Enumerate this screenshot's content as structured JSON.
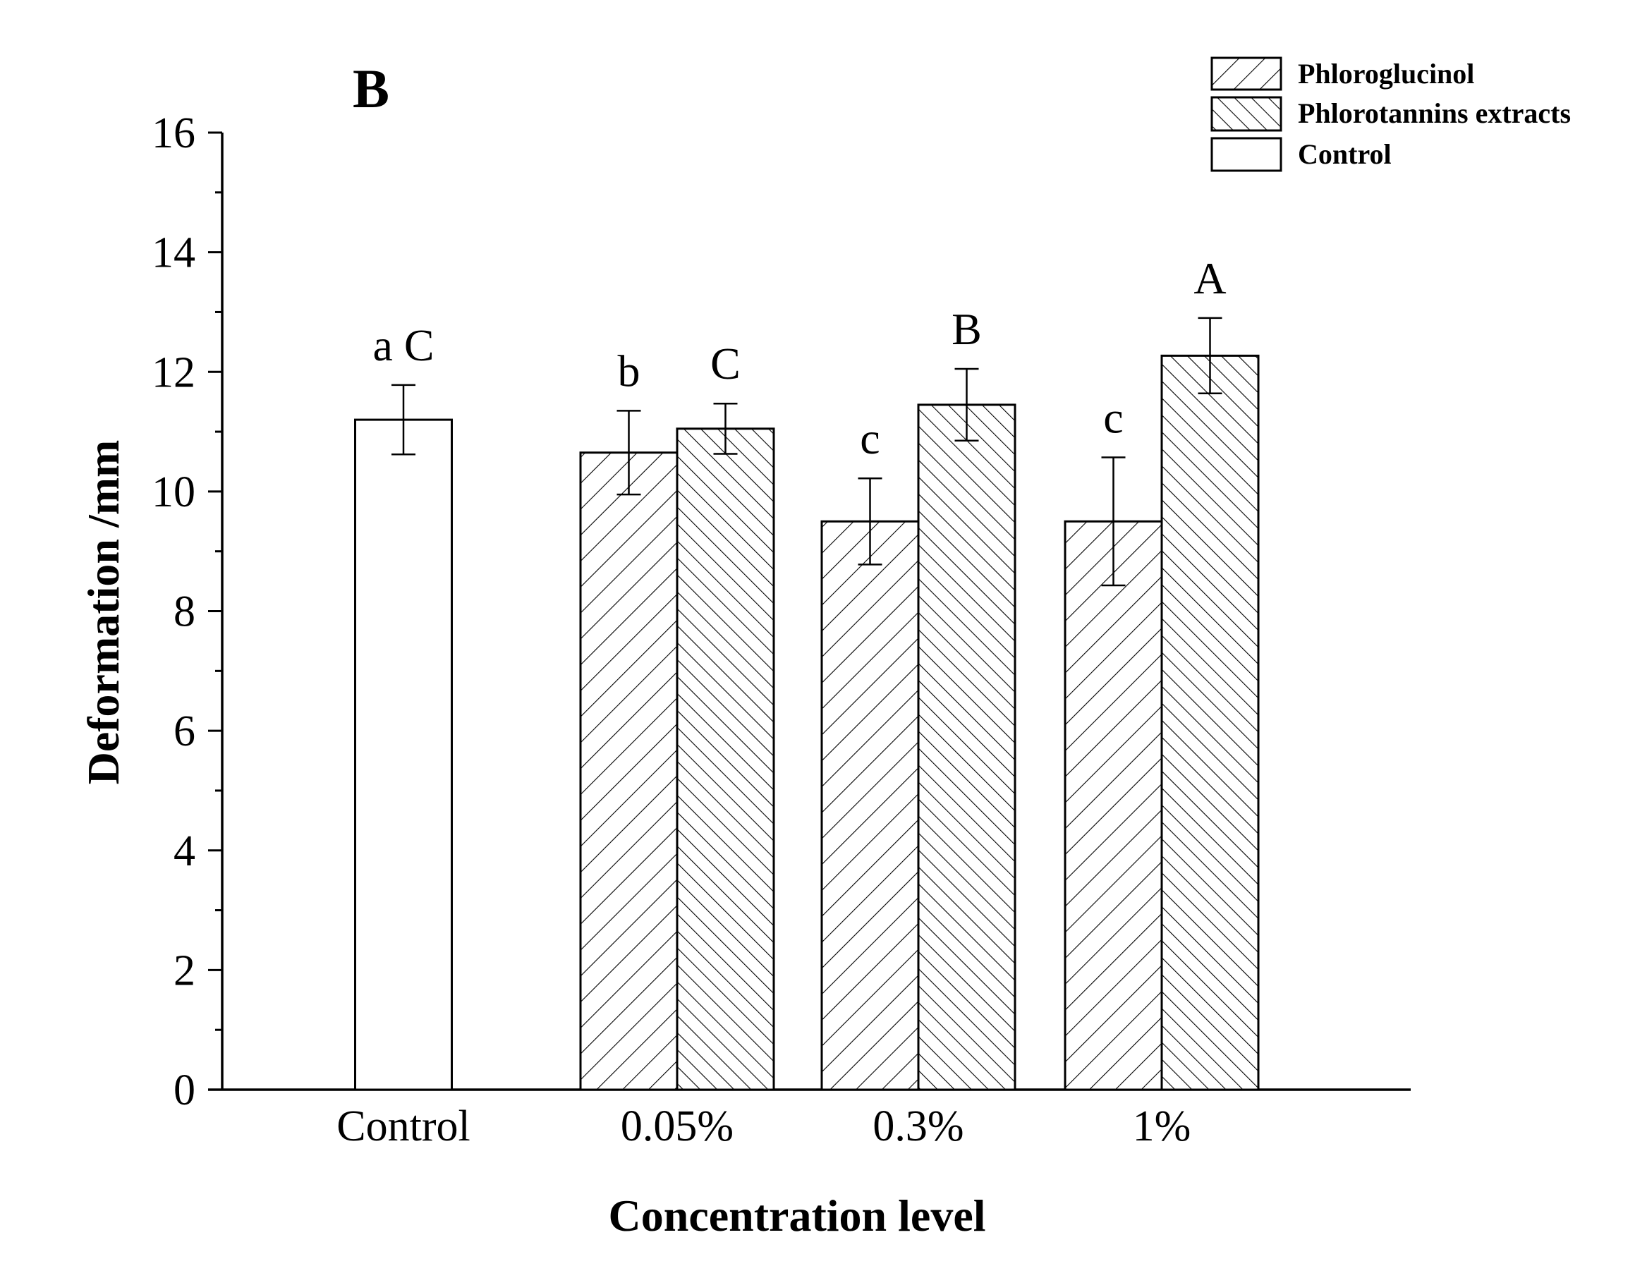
{
  "chart_data": {
    "type": "bar",
    "panel_label": "B",
    "xlabel": "Concentration level",
    "ylabel": "Deformation /mm",
    "ylim": [
      0,
      16
    ],
    "yticks": [
      0,
      2,
      4,
      6,
      8,
      10,
      12,
      14,
      16
    ],
    "categories": [
      "Control",
      "0.05%",
      "0.3%",
      "1%"
    ],
    "series": [
      {
        "name": "Control",
        "pattern": "none",
        "values": [
          11.2,
          null,
          null,
          null
        ],
        "errors": [
          0.58,
          null,
          null,
          null
        ],
        "labels": [
          "a C",
          null,
          null,
          null
        ]
      },
      {
        "name": "Phloroglucinol",
        "pattern": "forward-hatch",
        "values": [
          null,
          10.65,
          9.5,
          9.5
        ],
        "errors": [
          null,
          0.7,
          0.72,
          1.07
        ],
        "labels": [
          null,
          "b",
          "c",
          "c"
        ]
      },
      {
        "name": "Phlorotannins extracts",
        "pattern": "backward-hatch",
        "values": [
          null,
          11.05,
          11.45,
          12.27
        ],
        "errors": [
          null,
          0.42,
          0.6,
          0.63
        ],
        "labels": [
          null,
          "C",
          "B",
          "A"
        ]
      }
    ],
    "legend": {
      "position": "top-right",
      "entries": [
        "Phloroglucinol",
        "Phlorotannins extracts",
        "Control"
      ]
    },
    "grid": false
  },
  "colors": {
    "stroke": "#000000",
    "fill": "#ffffff"
  }
}
